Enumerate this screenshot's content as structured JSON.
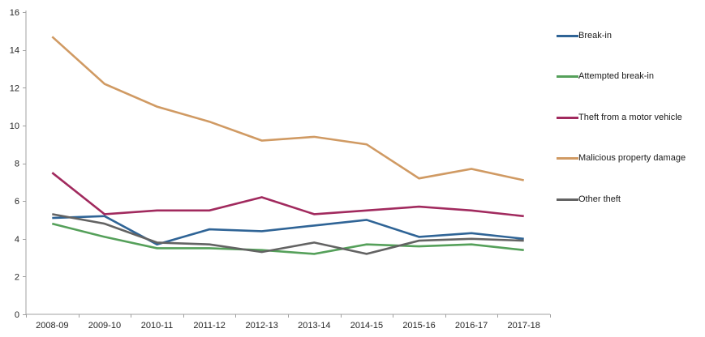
{
  "chart_data": {
    "type": "line",
    "title": "",
    "xlabel": "",
    "ylabel": "",
    "categories": [
      "2008-09",
      "2009-10",
      "2010-11",
      "2011-12",
      "2012-13",
      "2013-14",
      "2014-15",
      "2015-16",
      "2016-17",
      "2017-18"
    ],
    "series": [
      {
        "name": "Break-in",
        "color": "#2F6496",
        "values": [
          5.1,
          5.2,
          3.7,
          4.5,
          4.4,
          4.7,
          5.0,
          4.1,
          4.3,
          4.0
        ]
      },
      {
        "name": "Attempted break-in",
        "color": "#55A05A",
        "values": [
          4.8,
          4.1,
          3.5,
          3.5,
          3.4,
          3.2,
          3.7,
          3.6,
          3.7,
          3.4
        ]
      },
      {
        "name": "Theft from a motor vehicle",
        "color": "#A12A5E",
        "values": [
          7.5,
          5.3,
          5.5,
          5.5,
          6.2,
          5.3,
          5.5,
          5.7,
          5.5,
          5.2
        ]
      },
      {
        "name": "Malicious property damage",
        "color": "#D09A63",
        "values": [
          14.7,
          12.2,
          11.0,
          10.2,
          9.2,
          9.4,
          9.0,
          7.2,
          7.7,
          7.1
        ]
      },
      {
        "name": "Other theft",
        "color": "#636363",
        "values": [
          5.3,
          4.8,
          3.8,
          3.7,
          3.3,
          3.8,
          3.2,
          3.9,
          4.0,
          3.9
        ]
      }
    ],
    "ylim": [
      0,
      16
    ],
    "yticks": [
      0,
      2,
      4,
      6,
      8,
      10,
      12,
      14,
      16
    ],
    "grid": false,
    "legend_position": "right",
    "axis_color": "#A0A0A0",
    "tick_label_color": "#262626",
    "background_color": "#FFFFFF"
  }
}
